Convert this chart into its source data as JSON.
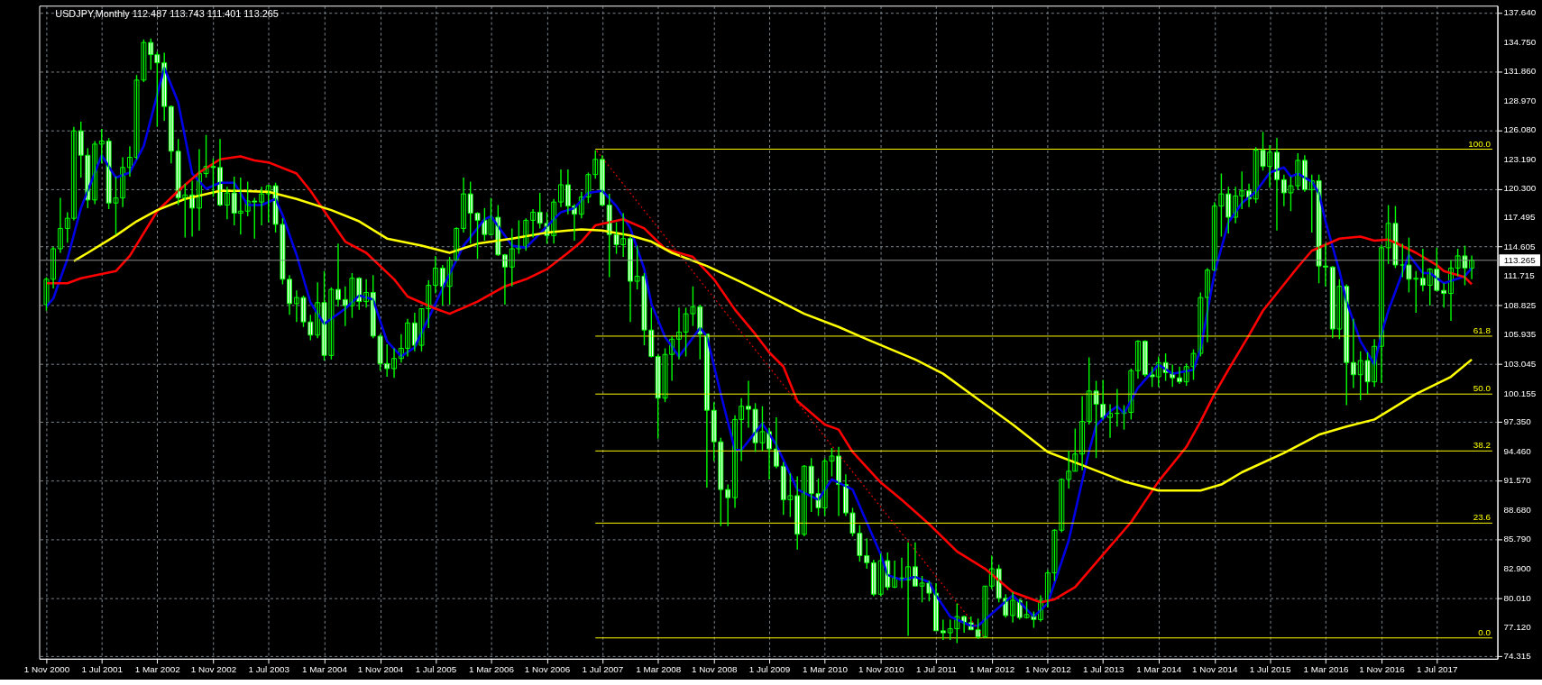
{
  "chart_data": {
    "type": "candlestick",
    "title": "USDJPY,Monthly  112.487 113.743 111.401 113.265",
    "color": "#00ff00",
    "grid": true,
    "xlim": [
      "2000-10-20",
      "2018-03-04"
    ],
    "ylim": [
      74.05,
      138.32
    ],
    "xticks": [
      {
        "value": "2000-11-01",
        "label": "1 Nov 2000"
      },
      {
        "value": "2001-07-01",
        "label": "1 Jul 2001"
      },
      {
        "value": "2002-03-01",
        "label": "1 Mar 2002"
      },
      {
        "value": "2002-11-01",
        "label": "1 Nov 2002"
      },
      {
        "value": "2003-07-01",
        "label": "1 Jul 2003"
      },
      {
        "value": "2004-03-01",
        "label": "1 Mar 2004"
      },
      {
        "value": "2004-11-01",
        "label": "1 Nov 2004"
      },
      {
        "value": "2005-07-01",
        "label": "1 Jul 2005"
      },
      {
        "value": "2006-03-01",
        "label": "1 Mar 2006"
      },
      {
        "value": "2006-11-01",
        "label": "1 Nov 2006"
      },
      {
        "value": "2007-07-01",
        "label": "1 Jul 2007"
      },
      {
        "value": "2008-03-01",
        "label": "1 Mar 2008"
      },
      {
        "value": "2008-11-01",
        "label": "1 Nov 2008"
      },
      {
        "value": "2009-07-01",
        "label": "1 Jul 2009"
      },
      {
        "value": "2010-03-01",
        "label": "1 Mar 2010"
      },
      {
        "value": "2010-11-01",
        "label": "1 Nov 2010"
      },
      {
        "value": "2011-07-01",
        "label": "1 Jul 2011"
      },
      {
        "value": "2012-03-01",
        "label": "1 Mar 2012"
      },
      {
        "value": "2012-11-01",
        "label": "1 Nov 2012"
      },
      {
        "value": "2013-07-01",
        "label": "1 Jul 2013"
      },
      {
        "value": "2014-03-01",
        "label": "1 Mar 2014"
      },
      {
        "value": "2014-11-01",
        "label": "1 Nov 2014"
      },
      {
        "value": "2015-07-01",
        "label": "1 Jul 2015"
      },
      {
        "value": "2016-03-01",
        "label": "1 Mar 2016"
      },
      {
        "value": "2016-11-01",
        "label": "1 Nov 2016"
      },
      {
        "value": "2017-07-01",
        "label": "1 Jul 2017"
      }
    ],
    "yticks": [
      74.315,
      {
        "value": 77.12,
        "label": "77.120"
      },
      {
        "value": 80.01,
        "label": "80.010"
      },
      {
        "value": 82.9,
        "label": "82.900"
      },
      {
        "value": 85.79,
        "label": "85.790"
      },
      {
        "value": 88.68,
        "label": "88.680"
      },
      {
        "value": 91.57,
        "label": "91.570"
      },
      {
        "value": 94.46,
        "label": "94.460"
      },
      {
        "value": 97.35,
        "label": "97.350"
      },
      100.155,
      103.045,
      105.935,
      108.825,
      111.715,
      114.605,
      117.495,
      {
        "value": 120.3,
        "label": "120.300"
      },
      {
        "value": 123.19,
        "label": "123.190"
      },
      {
        "value": 126.08,
        "label": "126.080"
      },
      {
        "value": 128.97,
        "label": "128.970"
      },
      {
        "value": 131.86,
        "label": "131.860"
      },
      {
        "value": 134.75,
        "label": "134.750"
      },
      {
        "value": 137.64,
        "label": "137.640"
      }
    ],
    "ref_lines": [
      {
        "axis": "y",
        "value": 113.265,
        "label": "113.265",
        "color": "#8c8c8c"
      }
    ],
    "x": [
      "2000-11",
      "2000-12",
      "2001-01",
      "2001-02",
      "2001-03",
      "2001-04",
      "2001-05",
      "2001-06",
      "2001-07",
      "2001-08",
      "2001-09",
      "2001-10",
      "2001-11",
      "2001-12",
      "2002-01",
      "2002-02",
      "2002-03",
      "2002-04",
      "2002-05",
      "2002-06",
      "2002-07",
      "2002-08",
      "2002-09",
      "2002-10",
      "2002-11",
      "2002-12",
      "2003-01",
      "2003-02",
      "2003-03",
      "2003-04",
      "2003-05",
      "2003-06",
      "2003-07",
      "2003-08",
      "2003-09",
      "2003-10",
      "2003-11",
      "2003-12",
      "2004-01",
      "2004-02",
      "2004-03",
      "2004-04",
      "2004-05",
      "2004-06",
      "2004-07",
      "2004-08",
      "2004-09",
      "2004-10",
      "2004-11",
      "2004-12",
      "2005-01",
      "2005-02",
      "2005-03",
      "2005-04",
      "2005-05",
      "2005-06",
      "2005-07",
      "2005-08",
      "2005-09",
      "2005-10",
      "2005-11",
      "2005-12",
      "2006-01",
      "2006-02",
      "2006-03",
      "2006-04",
      "2006-05",
      "2006-06",
      "2006-07",
      "2006-08",
      "2006-09",
      "2006-10",
      "2006-11",
      "2006-12",
      "2007-01",
      "2007-02",
      "2007-03",
      "2007-04",
      "2007-05",
      "2007-06",
      "2007-07",
      "2007-08",
      "2007-09",
      "2007-10",
      "2007-11",
      "2007-12",
      "2008-01",
      "2008-02",
      "2008-03",
      "2008-04",
      "2008-05",
      "2008-06",
      "2008-07",
      "2008-08",
      "2008-09",
      "2008-10",
      "2008-11",
      "2008-12",
      "2009-01",
      "2009-02",
      "2009-03",
      "2009-04",
      "2009-05",
      "2009-06",
      "2009-07",
      "2009-08",
      "2009-09",
      "2009-10",
      "2009-11",
      "2009-12",
      "2010-01",
      "2010-02",
      "2010-03",
      "2010-04",
      "2010-05",
      "2010-06",
      "2010-07",
      "2010-08",
      "2010-09",
      "2010-10",
      "2010-11",
      "2010-12",
      "2011-01",
      "2011-02",
      "2011-03",
      "2011-04",
      "2011-05",
      "2011-06",
      "2011-07",
      "2011-08",
      "2011-09",
      "2011-10",
      "2011-11",
      "2011-12",
      "2012-01",
      "2012-02",
      "2012-03",
      "2012-04",
      "2012-05",
      "2012-06",
      "2012-07",
      "2012-08",
      "2012-09",
      "2012-10",
      "2012-11",
      "2012-12",
      "2013-01",
      "2013-02",
      "2013-03",
      "2013-04",
      "2013-05",
      "2013-06",
      "2013-07",
      "2013-08",
      "2013-09",
      "2013-10",
      "2013-11",
      "2013-12",
      "2014-01",
      "2014-02",
      "2014-03",
      "2014-04",
      "2014-05",
      "2014-06",
      "2014-07",
      "2014-08",
      "2014-09",
      "2014-10",
      "2014-11",
      "2014-12",
      "2015-01",
      "2015-02",
      "2015-03",
      "2015-04",
      "2015-05",
      "2015-06",
      "2015-07",
      "2015-08",
      "2015-09",
      "2015-10",
      "2015-11",
      "2015-12",
      "2016-01",
      "2016-02",
      "2016-03",
      "2016-04",
      "2016-05",
      "2016-06",
      "2016-07",
      "2016-08",
      "2016-09",
      "2016-10",
      "2016-11",
      "2016-12",
      "2017-01",
      "2017-02",
      "2017-03",
      "2017-04",
      "2017-05",
      "2017-06",
      "2017-07",
      "2017-08",
      "2017-09",
      "2017-10",
      "2017-11",
      "2017-12"
    ],
    "ohlc": [
      [
        108.9,
        111.6,
        108.3,
        111.4
      ],
      [
        111.4,
        114.6,
        110.5,
        114.4
      ],
      [
        114.4,
        119.4,
        114.0,
        116.4
      ],
      [
        116.4,
        118.0,
        115.0,
        117.4
      ],
      [
        117.4,
        126.4,
        117.2,
        126.0
      ],
      [
        126.0,
        126.9,
        121.4,
        123.6
      ],
      [
        123.6,
        124.3,
        118.4,
        119.2
      ],
      [
        119.2,
        125.0,
        118.8,
        124.7
      ],
      [
        124.7,
        126.2,
        122.8,
        125.0
      ],
      [
        125.0,
        125.3,
        118.3,
        118.9
      ],
      [
        118.9,
        121.5,
        115.8,
        119.4
      ],
      [
        119.4,
        123.4,
        118.5,
        122.4
      ],
      [
        122.4,
        124.5,
        121.5,
        123.4
      ],
      [
        123.4,
        131.5,
        123.2,
        131.0
      ],
      [
        131.0,
        135.0,
        130.8,
        134.7
      ],
      [
        134.7,
        135.1,
        132.0,
        133.5
      ],
      [
        133.5,
        133.8,
        126.4,
        132.7
      ],
      [
        132.7,
        133.7,
        127.0,
        128.4
      ],
      [
        128.4,
        128.5,
        122.8,
        124.0
      ],
      [
        124.0,
        125.2,
        118.7,
        119.4
      ],
      [
        119.4,
        120.8,
        115.5,
        119.7
      ],
      [
        119.7,
        121.1,
        115.6,
        118.4
      ],
      [
        118.4,
        124.2,
        116.2,
        121.8
      ],
      [
        121.8,
        125.6,
        121.4,
        122.5
      ],
      [
        122.5,
        123.3,
        119.5,
        122.4
      ],
      [
        122.4,
        125.2,
        118.6,
        118.7
      ],
      [
        118.7,
        120.5,
        117.3,
        119.9
      ],
      [
        119.9,
        121.5,
        116.7,
        117.9
      ],
      [
        117.9,
        121.4,
        115.8,
        118.1
      ],
      [
        118.1,
        121.0,
        117.6,
        119.1
      ],
      [
        119.1,
        119.4,
        115.4,
        119.0
      ],
      [
        119.0,
        120.5,
        116.7,
        119.8
      ],
      [
        119.8,
        120.7,
        117.0,
        120.6
      ],
      [
        120.6,
        120.9,
        116.0,
        116.8
      ],
      [
        116.8,
        117.4,
        110.9,
        111.4
      ],
      [
        111.4,
        111.8,
        107.9,
        109.0
      ],
      [
        109.0,
        110.3,
        107.2,
        109.6
      ],
      [
        109.6,
        109.8,
        106.7,
        107.2
      ],
      [
        107.2,
        107.9,
        105.4,
        105.9
      ],
      [
        105.9,
        111.1,
        105.6,
        109.1
      ],
      [
        109.1,
        112.2,
        103.4,
        103.9
      ],
      [
        103.9,
        110.6,
        103.5,
        110.4
      ],
      [
        110.4,
        114.9,
        108.7,
        109.4
      ],
      [
        109.4,
        110.7,
        106.8,
        108.8
      ],
      [
        108.8,
        112.0,
        107.6,
        111.5
      ],
      [
        111.5,
        111.6,
        108.4,
        109.2
      ],
      [
        109.2,
        111.4,
        108.6,
        110.1
      ],
      [
        110.1,
        111.8,
        105.6,
        105.8
      ],
      [
        105.8,
        106.0,
        102.4,
        103.1
      ],
      [
        103.1,
        105.0,
        101.8,
        102.6
      ],
      [
        102.6,
        104.6,
        101.7,
        103.6
      ],
      [
        103.6,
        106.0,
        103.2,
        104.6
      ],
      [
        104.6,
        107.5,
        103.8,
        107.1
      ],
      [
        107.1,
        108.1,
        104.3,
        104.9
      ],
      [
        104.9,
        108.5,
        104.3,
        108.5
      ],
      [
        108.5,
        111.3,
        106.6,
        110.8
      ],
      [
        110.8,
        113.7,
        110.0,
        112.5
      ],
      [
        112.5,
        112.8,
        108.8,
        110.7
      ],
      [
        110.7,
        113.6,
        108.9,
        113.3
      ],
      [
        113.3,
        116.5,
        113.2,
        116.4
      ],
      [
        116.4,
        121.4,
        116.0,
        119.8
      ],
      [
        119.8,
        121.0,
        114.9,
        117.9
      ],
      [
        117.9,
        118.0,
        113.4,
        117.2
      ],
      [
        117.2,
        118.4,
        115.2,
        115.8
      ],
      [
        115.8,
        119.4,
        115.7,
        117.5
      ],
      [
        117.5,
        118.7,
        113.7,
        113.8
      ],
      [
        113.8,
        113.9,
        108.9,
        112.6
      ],
      [
        112.6,
        116.4,
        110.7,
        114.4
      ],
      [
        114.4,
        117.2,
        113.9,
        114.6
      ],
      [
        114.6,
        117.4,
        114.2,
        117.2
      ],
      [
        117.2,
        118.3,
        115.5,
        118.0
      ],
      [
        118.0,
        119.9,
        116.4,
        116.9
      ],
      [
        116.9,
        118.0,
        114.9,
        115.7
      ],
      [
        115.7,
        119.3,
        114.9,
        119.0
      ],
      [
        119.0,
        122.2,
        118.5,
        120.7
      ],
      [
        120.7,
        122.2,
        117.8,
        118.6
      ],
      [
        118.6,
        118.8,
        115.2,
        117.8
      ],
      [
        117.8,
        120.0,
        117.4,
        119.5
      ],
      [
        119.5,
        121.9,
        118.9,
        121.7
      ],
      [
        121.7,
        124.1,
        121.3,
        123.2
      ],
      [
        123.2,
        123.6,
        118.6,
        118.7
      ],
      [
        118.7,
        119.8,
        111.6,
        115.8
      ],
      [
        115.8,
        117.0,
        113.9,
        114.8
      ],
      [
        114.8,
        117.9,
        113.6,
        115.4
      ],
      [
        115.4,
        115.6,
        107.2,
        111.2
      ],
      [
        111.2,
        114.7,
        110.4,
        111.7
      ],
      [
        111.7,
        112.0,
        104.9,
        106.4
      ],
      [
        106.4,
        108.6,
        103.7,
        103.8
      ],
      [
        103.8,
        104.0,
        95.7,
        99.7
      ],
      [
        99.7,
        104.6,
        99.3,
        104.0
      ],
      [
        104.0,
        105.8,
        101.4,
        105.5
      ],
      [
        105.5,
        108.6,
        103.5,
        106.2
      ],
      [
        106.2,
        108.6,
        103.8,
        108.0
      ],
      [
        108.0,
        110.7,
        106.8,
        108.7
      ],
      [
        108.7,
        108.9,
        103.5,
        106.0
      ],
      [
        106.0,
        106.0,
        90.9,
        98.5
      ],
      [
        98.5,
        99.3,
        93.5,
        95.4
      ],
      [
        95.4,
        95.8,
        87.1,
        90.7
      ],
      [
        90.7,
        91.2,
        87.1,
        89.9
      ],
      [
        89.9,
        98.0,
        88.9,
        97.6
      ],
      [
        97.6,
        99.7,
        93.5,
        98.9
      ],
      [
        98.9,
        101.4,
        96.8,
        98.6
      ],
      [
        98.6,
        99.2,
        94.4,
        95.3
      ],
      [
        95.3,
        98.9,
        94.5,
        96.4
      ],
      [
        96.4,
        96.8,
        91.7,
        94.7
      ],
      [
        94.7,
        97.8,
        92.8,
        93.0
      ],
      [
        93.0,
        93.4,
        88.2,
        89.7
      ],
      [
        89.7,
        92.3,
        88.0,
        90.1
      ],
      [
        90.1,
        92.0,
        84.8,
        86.3
      ],
      [
        86.3,
        93.1,
        86.1,
        93.0
      ],
      [
        93.0,
        93.8,
        88.5,
        90.3
      ],
      [
        90.3,
        91.8,
        88.1,
        88.9
      ],
      [
        88.9,
        93.8,
        88.1,
        93.5
      ],
      [
        93.5,
        94.8,
        92.0,
        94.0
      ],
      [
        94.0,
        94.9,
        88.1,
        91.2
      ],
      [
        91.2,
        92.2,
        88.1,
        88.4
      ],
      [
        88.4,
        88.9,
        86.1,
        86.4
      ],
      [
        86.4,
        87.2,
        83.6,
        84.2
      ],
      [
        84.2,
        85.9,
        82.9,
        83.5
      ],
      [
        83.5,
        83.8,
        80.2,
        80.4
      ],
      [
        80.4,
        84.4,
        80.2,
        83.7
      ],
      [
        83.7,
        84.5,
        80.8,
        81.1
      ],
      [
        81.1,
        83.7,
        81.0,
        82.0
      ],
      [
        82.0,
        84.0,
        81.0,
        81.8
      ],
      [
        81.8,
        85.5,
        76.3,
        83.1
      ],
      [
        83.1,
        85.5,
        81.2,
        81.2
      ],
      [
        81.2,
        82.2,
        79.6,
        81.5
      ],
      [
        81.5,
        81.7,
        79.7,
        80.5
      ],
      [
        80.5,
        81.5,
        76.8,
        76.8
      ],
      [
        76.8,
        77.9,
        75.9,
        76.6
      ],
      [
        76.6,
        77.9,
        75.9,
        77.0
      ],
      [
        77.0,
        79.5,
        75.6,
        78.2
      ],
      [
        78.2,
        78.3,
        76.6,
        77.6
      ],
      [
        77.6,
        78.2,
        76.9,
        76.9
      ],
      [
        76.9,
        78.0,
        76.0,
        76.2
      ],
      [
        76.2,
        81.2,
        76.1,
        81.2
      ],
      [
        81.2,
        84.2,
        80.9,
        82.9
      ],
      [
        82.9,
        83.3,
        79.6,
        80.0
      ],
      [
        80.0,
        80.4,
        78.1,
        78.3
      ],
      [
        78.3,
        80.6,
        77.6,
        79.8
      ],
      [
        79.8,
        79.9,
        77.9,
        78.1
      ],
      [
        78.1,
        79.7,
        78.0,
        78.4
      ],
      [
        78.4,
        78.7,
        77.1,
        77.9
      ],
      [
        77.9,
        80.3,
        77.7,
        79.8
      ],
      [
        79.8,
        82.8,
        79.1,
        82.5
      ],
      [
        82.5,
        86.8,
        81.7,
        86.7
      ],
      [
        86.7,
        91.8,
        86.5,
        91.7
      ],
      [
        91.7,
        94.5,
        90.8,
        92.5
      ],
      [
        92.5,
        96.7,
        92.5,
        94.2
      ],
      [
        94.2,
        99.9,
        92.6,
        97.4
      ],
      [
        97.4,
        103.7,
        97.1,
        100.4
      ],
      [
        100.4,
        101.4,
        93.8,
        99.1
      ],
      [
        99.1,
        101.5,
        97.6,
        97.8
      ],
      [
        97.8,
        99.1,
        95.8,
        98.2
      ],
      [
        98.2,
        100.6,
        96.9,
        98.2
      ],
      [
        98.2,
        99.0,
        96.6,
        98.3
      ],
      [
        98.3,
        102.6,
        97.6,
        102.4
      ],
      [
        102.4,
        105.4,
        101.6,
        105.3
      ],
      [
        105.3,
        105.4,
        101.8,
        102.0
      ],
      [
        102.0,
        102.8,
        100.8,
        101.8
      ],
      [
        101.8,
        103.8,
        100.8,
        103.2
      ],
      [
        103.2,
        104.1,
        101.4,
        102.2
      ],
      [
        102.2,
        103.0,
        100.8,
        101.7
      ],
      [
        101.7,
        102.8,
        101.1,
        101.3
      ],
      [
        101.3,
        103.1,
        100.9,
        102.8
      ],
      [
        102.8,
        104.5,
        101.5,
        104.1
      ],
      [
        104.1,
        110.1,
        103.8,
        109.6
      ],
      [
        109.6,
        112.5,
        105.2,
        112.3
      ],
      [
        112.3,
        119.0,
        112.2,
        118.6
      ],
      [
        118.6,
        121.8,
        115.6,
        119.8
      ],
      [
        119.8,
        120.5,
        115.9,
        117.5
      ],
      [
        117.5,
        120.5,
        116.9,
        119.6
      ],
      [
        119.6,
        122.0,
        118.3,
        120.1
      ],
      [
        120.1,
        120.8,
        118.5,
        119.3
      ],
      [
        119.3,
        124.4,
        118.9,
        124.1
      ],
      [
        124.1,
        125.9,
        122.1,
        122.5
      ],
      [
        122.5,
        124.6,
        120.4,
        123.9
      ],
      [
        123.9,
        125.3,
        116.2,
        121.2
      ],
      [
        121.2,
        121.7,
        118.6,
        119.9
      ],
      [
        119.9,
        121.5,
        118.1,
        120.6
      ],
      [
        120.6,
        123.8,
        120.2,
        123.1
      ],
      [
        123.1,
        123.6,
        120.0,
        120.2
      ],
      [
        120.2,
        121.7,
        116.0,
        121.1
      ],
      [
        121.1,
        121.7,
        111.0,
        112.7
      ],
      [
        112.7,
        114.9,
        110.7,
        112.6
      ],
      [
        112.6,
        112.7,
        105.6,
        106.5
      ],
      [
        106.5,
        111.4,
        105.5,
        110.7
      ],
      [
        110.7,
        110.9,
        99.0,
        103.2
      ],
      [
        103.2,
        107.5,
        100.7,
        102.0
      ],
      [
        102.0,
        104.3,
        99.5,
        103.4
      ],
      [
        103.4,
        104.2,
        100.1,
        101.3
      ],
      [
        101.3,
        105.5,
        100.8,
        104.8
      ],
      [
        104.8,
        114.8,
        101.2,
        114.5
      ],
      [
        114.5,
        118.7,
        112.9,
        116.9
      ],
      [
        116.9,
        118.6,
        112.5,
        112.8
      ],
      [
        112.8,
        114.9,
        111.6,
        112.8
      ],
      [
        112.8,
        115.5,
        110.1,
        111.4
      ],
      [
        111.4,
        112.2,
        108.1,
        111.5
      ],
      [
        111.5,
        114.4,
        110.2,
        110.8
      ],
      [
        110.8,
        112.5,
        108.8,
        112.4
      ],
      [
        112.4,
        114.5,
        110.2,
        110.3
      ],
      [
        110.3,
        111.0,
        108.6,
        110.0
      ],
      [
        110.0,
        113.3,
        107.3,
        112.5
      ],
      [
        112.5,
        114.4,
        111.7,
        113.7
      ],
      [
        113.7,
        114.7,
        110.8,
        112.5
      ],
      [
        112.487,
        113.743,
        111.401,
        113.265
      ]
    ],
    "series": [
      {
        "type": "line",
        "color": "#0000e6",
        "x": [
          "2000-11",
          "2000-12",
          "2001-02",
          "2001-04",
          "2001-05",
          "2001-07",
          "2001-09",
          "2001-11",
          "2002-01",
          "2002-04",
          "2002-06",
          "2002-08",
          "2002-10",
          "2002-12",
          "2003-02",
          "2003-04",
          "2003-06",
          "2003-08",
          "2003-09",
          "2003-11",
          "2004-01",
          "2004-03",
          "2004-06",
          "2004-08",
          "2004-10",
          "2004-12",
          "2005-02",
          "2005-04",
          "2005-07",
          "2005-08",
          "2005-11",
          "2006-02",
          "2006-03",
          "2006-06",
          "2006-08",
          "2006-11",
          "2007-01",
          "2007-03",
          "2007-05",
          "2007-07",
          "2007-09",
          "2007-11",
          "2008-01",
          "2008-02",
          "2008-04",
          "2008-06",
          "2008-09",
          "2008-10",
          "2008-12",
          "2009-02",
          "2009-03",
          "2009-06",
          "2009-08",
          "2009-11",
          "2010-02",
          "2010-04",
          "2010-07",
          "2010-11",
          "2010-12",
          "2011-02",
          "2011-04",
          "2011-06",
          "2011-07",
          "2011-09",
          "2011-12",
          "2012-01",
          "2012-04",
          "2012-06",
          "2012-09",
          "2012-11",
          "2013-02",
          "2013-05",
          "2013-06",
          "2013-08",
          "2013-09",
          "2013-10",
          "2013-12",
          "2014-03",
          "2014-05",
          "2014-08",
          "2014-09",
          "2014-11",
          "2015-01",
          "2015-03",
          "2015-05",
          "2015-07",
          "2015-09",
          "2015-10",
          "2015-11",
          "2016-01",
          "2016-02",
          "2016-03",
          "2016-05",
          "2016-06",
          "2016-08",
          "2016-10",
          "2016-11",
          "2016-12",
          "2017-03",
          "2017-05",
          "2017-06",
          "2017-08",
          "2017-11",
          "2017-12"
        ],
        "values": [
          108.7,
          109.5,
          113.4,
          118.4,
          120.1,
          123.6,
          121.4,
          121.9,
          124.5,
          132.2,
          128.8,
          121.8,
          120.3,
          120.9,
          120.9,
          118.7,
          118.7,
          119.3,
          117.7,
          113.8,
          109.1,
          107.0,
          108.5,
          109.8,
          109.4,
          105.3,
          103.8,
          104.7,
          109.0,
          110.5,
          114.7,
          117.3,
          117.6,
          114.7,
          114.5,
          116.6,
          118.0,
          118.4,
          119.9,
          120.1,
          118.6,
          116.4,
          112.4,
          109.0,
          105.7,
          103.8,
          106.6,
          105.8,
          100.1,
          94.6,
          94.6,
          97.2,
          95.1,
          90.7,
          89.7,
          91.7,
          90.7,
          84.3,
          82.3,
          81.8,
          82.1,
          81.6,
          80.3,
          78.2,
          77.3,
          77.3,
          79.1,
          80.3,
          78.2,
          79.5,
          85.7,
          94.5,
          97.0,
          98.4,
          98.9,
          98.2,
          100.7,
          103.0,
          102.1,
          102.5,
          104.5,
          112.0,
          117.0,
          118.9,
          120.0,
          121.9,
          122.4,
          121.5,
          121.8,
          121.0,
          119.9,
          117.1,
          112.2,
          109.2,
          105.3,
          103.0,
          106.0,
          108.3,
          113.8,
          112.0,
          112.0,
          111.0,
          111.7,
          112.5
        ]
      },
      {
        "type": "line",
        "color": "#ff0000",
        "x": [
          "2000-11",
          "2001-02",
          "2001-04",
          "2001-09",
          "2001-11",
          "2002-03",
          "2002-06",
          "2002-09",
          "2002-12",
          "2003-03",
          "2003-05",
          "2003-07",
          "2003-11",
          "2004-01",
          "2004-04",
          "2004-06",
          "2004-09",
          "2005-01",
          "2005-03",
          "2005-07",
          "2005-09",
          "2006-01",
          "2006-05",
          "2006-08",
          "2006-11",
          "2007-02",
          "2007-04",
          "2007-06",
          "2007-10",
          "2008-01",
          "2008-04",
          "2008-08",
          "2008-11",
          "2009-02",
          "2009-05",
          "2009-07",
          "2009-09",
          "2009-11",
          "2010-03",
          "2010-05",
          "2010-07",
          "2010-11",
          "2011-02",
          "2011-06",
          "2011-10",
          "2012-02",
          "2012-06",
          "2012-10",
          "2012-12",
          "2013-03",
          "2013-07",
          "2013-11",
          "2014-03",
          "2014-07",
          "2014-09",
          "2014-11",
          "2015-01",
          "2015-04",
          "2015-06",
          "2015-11",
          "2016-01",
          "2016-05",
          "2016-08",
          "2016-10",
          "2016-12",
          "2017-01",
          "2017-04",
          "2017-07",
          "2017-08",
          "2017-11",
          "2017-12"
        ],
        "values": [
          111.0,
          111.0,
          111.5,
          112.2,
          113.7,
          118.1,
          120.1,
          121.9,
          123.2,
          123.5,
          123.1,
          122.9,
          121.8,
          120.1,
          117.1,
          115.1,
          114.0,
          111.4,
          109.7,
          108.5,
          108.0,
          109.2,
          110.7,
          111.4,
          112.4,
          114.0,
          115.1,
          116.7,
          117.3,
          116.4,
          114.4,
          113.6,
          111.4,
          108.4,
          106.0,
          104.2,
          102.8,
          99.4,
          97.1,
          96.6,
          94.4,
          91.4,
          89.7,
          87.3,
          84.6,
          82.9,
          80.6,
          79.6,
          79.9,
          81.1,
          84.3,
          87.5,
          91.5,
          94.9,
          97.4,
          100.1,
          102.5,
          105.9,
          108.3,
          112.6,
          114.2,
          115.4,
          115.6,
          115.2,
          115.3,
          115.0,
          114.0,
          112.8,
          112.2,
          111.6,
          110.9
        ]
      },
      {
        "type": "line",
        "color": "#ffff00",
        "x": [
          "2001-03",
          "2001-05",
          "2001-09",
          "2001-12",
          "2002-03",
          "2002-07",
          "2002-12",
          "2003-03",
          "2003-07",
          "2003-11",
          "2004-04",
          "2004-08",
          "2004-12",
          "2005-05",
          "2005-09",
          "2006-01",
          "2006-06",
          "2006-11",
          "2007-02",
          "2007-04",
          "2007-07",
          "2007-11",
          "2008-02",
          "2008-05",
          "2008-10",
          "2009-03",
          "2009-08",
          "2009-12",
          "2010-05",
          "2010-09",
          "2011-04",
          "2011-08",
          "2011-12",
          "2012-06",
          "2012-11",
          "2013-04",
          "2013-10",
          "2014-03",
          "2014-09",
          "2014-12",
          "2015-03",
          "2015-09",
          "2016-02",
          "2016-06",
          "2016-10",
          "2017-04",
          "2017-09",
          "2017-12"
        ],
        "values": [
          113.2,
          114.0,
          115.7,
          117.1,
          118.2,
          119.3,
          120.1,
          120.1,
          120.0,
          119.3,
          118.2,
          117.1,
          115.4,
          114.7,
          114.0,
          114.9,
          115.4,
          116.0,
          116.2,
          116.3,
          116.2,
          115.7,
          115.1,
          114.0,
          112.7,
          111.1,
          109.4,
          108.0,
          106.7,
          105.5,
          103.5,
          102.1,
          100.1,
          97.1,
          94.4,
          93.1,
          91.5,
          90.6,
          90.6,
          91.2,
          92.4,
          94.3,
          96.1,
          96.9,
          97.6,
          100.1,
          101.8,
          103.5
        ]
      },
      {
        "type": "line",
        "name": "100.0",
        "color": "#ffff00",
        "x": [
          "2007-06",
          "2018-03-01"
        ],
        "values": [
          124.2,
          124.2
        ]
      },
      {
        "type": "line",
        "name": "61.8",
        "color": "#ffff00",
        "x": [
          "2007-06",
          "2018-03-01"
        ],
        "values": [
          105.8,
          105.8
        ]
      },
      {
        "type": "line",
        "name": "50.0",
        "color": "#ffff00",
        "x": [
          "2007-06",
          "2018-03-01"
        ],
        "values": [
          100.1,
          100.1
        ]
      },
      {
        "type": "line",
        "name": "38.2",
        "color": "#ffff00",
        "x": [
          "2007-06",
          "2018-03-01"
        ],
        "values": [
          94.5,
          94.5
        ]
      },
      {
        "type": "line",
        "name": "23.6",
        "color": "#ffff00",
        "x": [
          "2007-06",
          "2018-03-01"
        ],
        "values": [
          87.4,
          87.4
        ]
      },
      {
        "type": "line",
        "name": "0.0",
        "color": "#ffff00",
        "x": [
          "2007-06",
          "2018-03-01"
        ],
        "values": [
          76.1,
          76.1
        ]
      },
      {
        "type": "line",
        "line_style": "dotted",
        "color": "#d00000",
        "x": [
          "2007-06",
          "2012-02"
        ],
        "values": [
          124.2,
          76.1
        ]
      }
    ]
  }
}
